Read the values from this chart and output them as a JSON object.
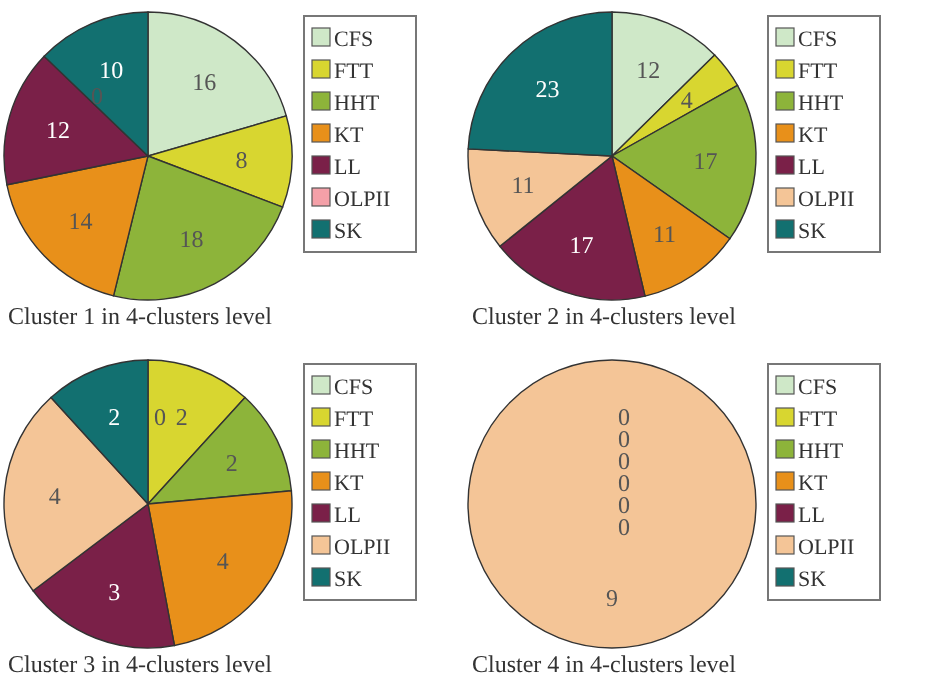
{
  "chart_data": [
    {
      "type": "pie",
      "title": "Cluster 1 in 4-clusters level",
      "categories": [
        "CFS",
        "FTT",
        "HHT",
        "KT",
        "LL",
        "OLPII",
        "SK"
      ],
      "values": [
        16,
        8,
        18,
        14,
        12,
        0,
        10
      ],
      "value_labels": [
        "16",
        "8",
        "18",
        "14",
        "12",
        "0",
        "10"
      ],
      "colors": [
        "#cfe8c8",
        "#d8d630",
        "#8db43a",
        "#e8901a",
        "#7a2048",
        "#f4a0a8",
        "#127070"
      ],
      "legend": "right"
    },
    {
      "type": "pie",
      "title": "Cluster 2 in 4-clusters level",
      "categories": [
        "CFS",
        "FTT",
        "HHT",
        "KT",
        "LL",
        "OLPII",
        "SK"
      ],
      "values": [
        12,
        4,
        17,
        11,
        17,
        11,
        23
      ],
      "value_labels": [
        "12",
        "4",
        "17",
        "11",
        "17",
        "11",
        "23"
      ],
      "colors": [
        "#cfe8c8",
        "#d8d630",
        "#8db43a",
        "#e8901a",
        "#7a2048",
        "#f4c597",
        "#127070"
      ],
      "legend": "right"
    },
    {
      "type": "pie",
      "title": "Cluster 3 in 4-clusters level",
      "categories": [
        "CFS",
        "FTT",
        "HHT",
        "KT",
        "LL",
        "OLPII",
        "SK"
      ],
      "values": [
        0,
        2,
        2,
        4,
        3,
        4,
        2
      ],
      "value_labels": [
        "0",
        "2",
        "2",
        "4",
        "3",
        "4",
        "2"
      ],
      "colors": [
        "#cfe8c8",
        "#d8d630",
        "#8db43a",
        "#e8901a",
        "#7a2048",
        "#f4c597",
        "#127070"
      ],
      "legend": "right"
    },
    {
      "type": "pie",
      "title": "Cluster 4 in 4-clusters level",
      "categories": [
        "CFS",
        "FTT",
        "HHT",
        "KT",
        "LL",
        "OLPII",
        "SK"
      ],
      "values": [
        0,
        0,
        0,
        0,
        0,
        9,
        0
      ],
      "value_labels": [
        "0",
        "0",
        "0",
        "0",
        "0",
        "9",
        "0"
      ],
      "colors": [
        "#cfe8c8",
        "#d8d630",
        "#8db43a",
        "#e8901a",
        "#7a2048",
        "#f4c597",
        "#127070"
      ],
      "legend": "right"
    }
  ]
}
